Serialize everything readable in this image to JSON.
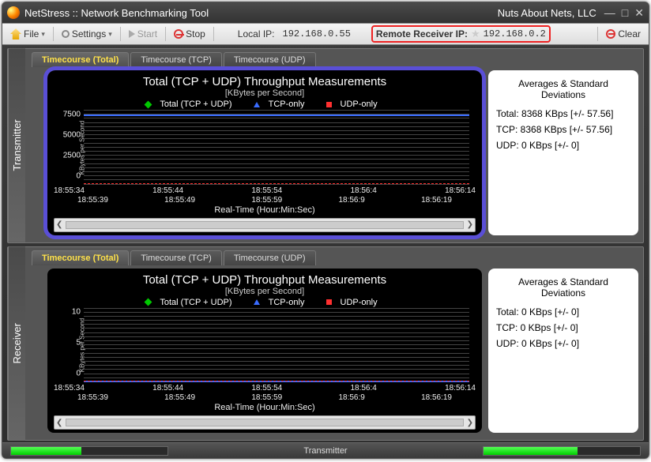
{
  "window": {
    "title": "NetStress :: Network Benchmarking Tool",
    "company": "Nuts About Nets, LLC"
  },
  "toolbar": {
    "file_label": "File",
    "settings_label": "Settings",
    "start_label": "Start",
    "stop_label": "Stop",
    "local_ip_label": "Local IP:",
    "local_ip_value": "192.168.0.55",
    "remote_ip_label": "Remote Receiver IP:",
    "remote_ip_value": "192.168.0.2",
    "clear_label": "Clear"
  },
  "tabs": {
    "total": "Timecourse (Total)",
    "tcp": "Timecourse (TCP)",
    "udp": "Timecourse (UDP)"
  },
  "transmitter": {
    "side_label": "Transmitter",
    "chart": {
      "title": "Total (TCP + UDP) Throughput Measurements",
      "subtitle": "[KBytes per Second]",
      "legend": {
        "total": "Total (TCP + UDP)",
        "tcp": "TCP-only",
        "udp": "UDP-only"
      },
      "legend_colors": {
        "total": "#00c800",
        "tcp": "#3a6cff",
        "udp": "#ff3030"
      },
      "y_axis_label": "KBytes per Second",
      "y_ticks": [
        "0",
        "2500",
        "5000",
        "7500"
      ],
      "y_max": 9000,
      "x_row1": [
        "18:55:34",
        "18:55:44",
        "18:55:54",
        "18:56:4",
        "18:56:14"
      ],
      "x_row2": [
        "18:55:39",
        "18:55:49",
        "18:55:59",
        "18:56:9",
        "18:56:19"
      ],
      "x_label": "Real-Time (Hour:Min:Sec)",
      "tcp_line_value": 8368,
      "udp_line_value": 0,
      "grid_color": "#444444",
      "background": "#000000"
    },
    "stats": {
      "heading": "Averages & Standard Deviations",
      "total": "Total: 8368 KBps [+/-  57.56]",
      "tcp": "TCP:   8368 KBps [+/-  57.56]",
      "udp": "UDP:   0 KBps [+/-  0]"
    }
  },
  "receiver": {
    "side_label": "Receiver",
    "chart": {
      "title": "Total (TCP + UDP) Throughput Measurements",
      "subtitle": "[KBytes per Second]",
      "legend": {
        "total": "Total (TCP + UDP)",
        "tcp": "TCP-only",
        "udp": "UDP-only"
      },
      "legend_colors": {
        "total": "#00c800",
        "tcp": "#3a6cff",
        "udp": "#ff3030"
      },
      "y_axis_label": "KBytes per Second",
      "y_ticks": [
        "0",
        "5",
        "10"
      ],
      "y_max": 12,
      "x_row1": [
        "18:55:34",
        "18:55:44",
        "18:55:54",
        "18:56:4",
        "18:56:14"
      ],
      "x_row2": [
        "18:55:39",
        "18:55:49",
        "18:55:59",
        "18:56:9",
        "18:56:19"
      ],
      "x_label": "Real-Time (Hour:Min:Sec)",
      "tcp_line_value": 0,
      "udp_line_value": 0,
      "grid_color": "#444444",
      "background": "#000000"
    },
    "stats": {
      "heading": "Averages & Standard Deviations",
      "total": "Total: 0 KBps [+/-  0]",
      "tcp": "TCP:   0 KBps [+/-  0]",
      "udp": "UDP:   0 KBps [+/-  0]"
    }
  },
  "status": {
    "center_label": "Transmitter",
    "progress_left_pct": 45,
    "progress_right_pct": 60
  },
  "colors": {
    "selection_outline": "#5a4fd6",
    "remote_highlight": "#e22222"
  }
}
